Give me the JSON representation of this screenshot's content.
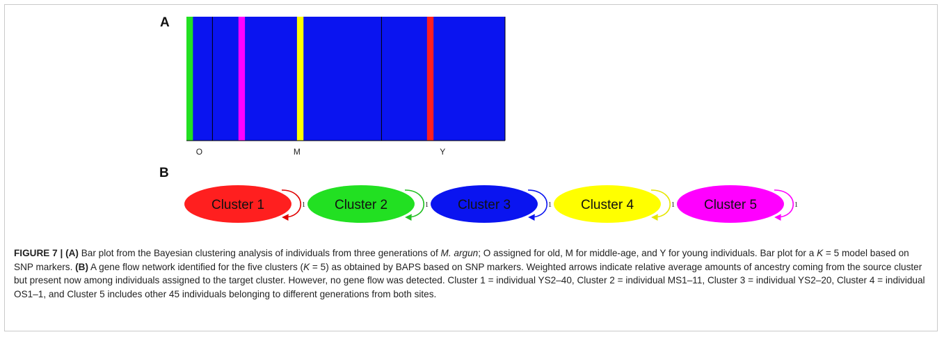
{
  "panel_a": {
    "letter": "A"
  },
  "panel_b": {
    "letter": "B"
  },
  "chart_data": {
    "type": "bar",
    "description_type": "stacked-ancestry-barplot",
    "n_individuals": 49,
    "groups": [
      {
        "label": "O",
        "start": 0,
        "end": 4
      },
      {
        "label": "M",
        "start": 4,
        "end": 30
      },
      {
        "label": "Y",
        "start": 30,
        "end": 49
      }
    ],
    "cluster_colors": {
      "1": "#ff1f1f",
      "2": "#22e022",
      "3": "#0a14f0",
      "4": "#ffff00",
      "5": "#ff00ff"
    },
    "background_cluster": "3",
    "highlighted_individuals": [
      {
        "index": 0,
        "cluster": "2"
      },
      {
        "index": 8,
        "cluster": "5"
      },
      {
        "index": 17,
        "cluster": "4"
      },
      {
        "index": 37,
        "cluster": "1"
      }
    ]
  },
  "network": {
    "clusters": [
      {
        "label": "Cluster 1",
        "color": "#ff1f1f",
        "arrow": "#e00000",
        "text_color": "#111111",
        "self_weight": "1"
      },
      {
        "label": "Cluster 2",
        "color": "#22e022",
        "arrow": "#22c022",
        "text_color": "#111111",
        "self_weight": "1"
      },
      {
        "label": "Cluster 3",
        "color": "#0a14f0",
        "arrow": "#0a14f0",
        "text_color": "#2a2a7a",
        "self_weight": "1"
      },
      {
        "label": "Cluster 4",
        "color": "#ffff00",
        "arrow": "#e6e600",
        "text_color": "#111111",
        "self_weight": "1"
      },
      {
        "label": "Cluster 5",
        "color": "#ff00ff",
        "arrow": "#ff00ff",
        "text_color": "#111111",
        "self_weight": "1"
      }
    ]
  },
  "caption": {
    "figure_label": "FIGURE 7 | ",
    "a_label": "(A)",
    "a_text_1": " Bar plot from the Bayesian clustering analysis of individuals from three generations of ",
    "a_species": "M. argun",
    "a_text_2": "; O assigned for old, M for middle-age, and Y for young individuals. Bar plot for a ",
    "a_k": "K",
    "a_text_3": " = 5 model based on SNP markers. ",
    "b_label": "(B)",
    "b_text_1": " A gene flow network identified for the five clusters (",
    "b_k": "K",
    "b_text_2": " = 5) as obtained by BAPS based on SNP markers. Weighted arrows indicate relative average amounts of ancestry coming from the source cluster but present now among individuals assigned to the target cluster. However, no gene flow was detected. Cluster 1 = individual YS2–40, Cluster 2 = individual MS1–11, Cluster 3 = individual YS2–20, Cluster 4 = individual OS1–1, and Cluster 5 includes other 45 individuals belonging to different generations from both sites."
  }
}
